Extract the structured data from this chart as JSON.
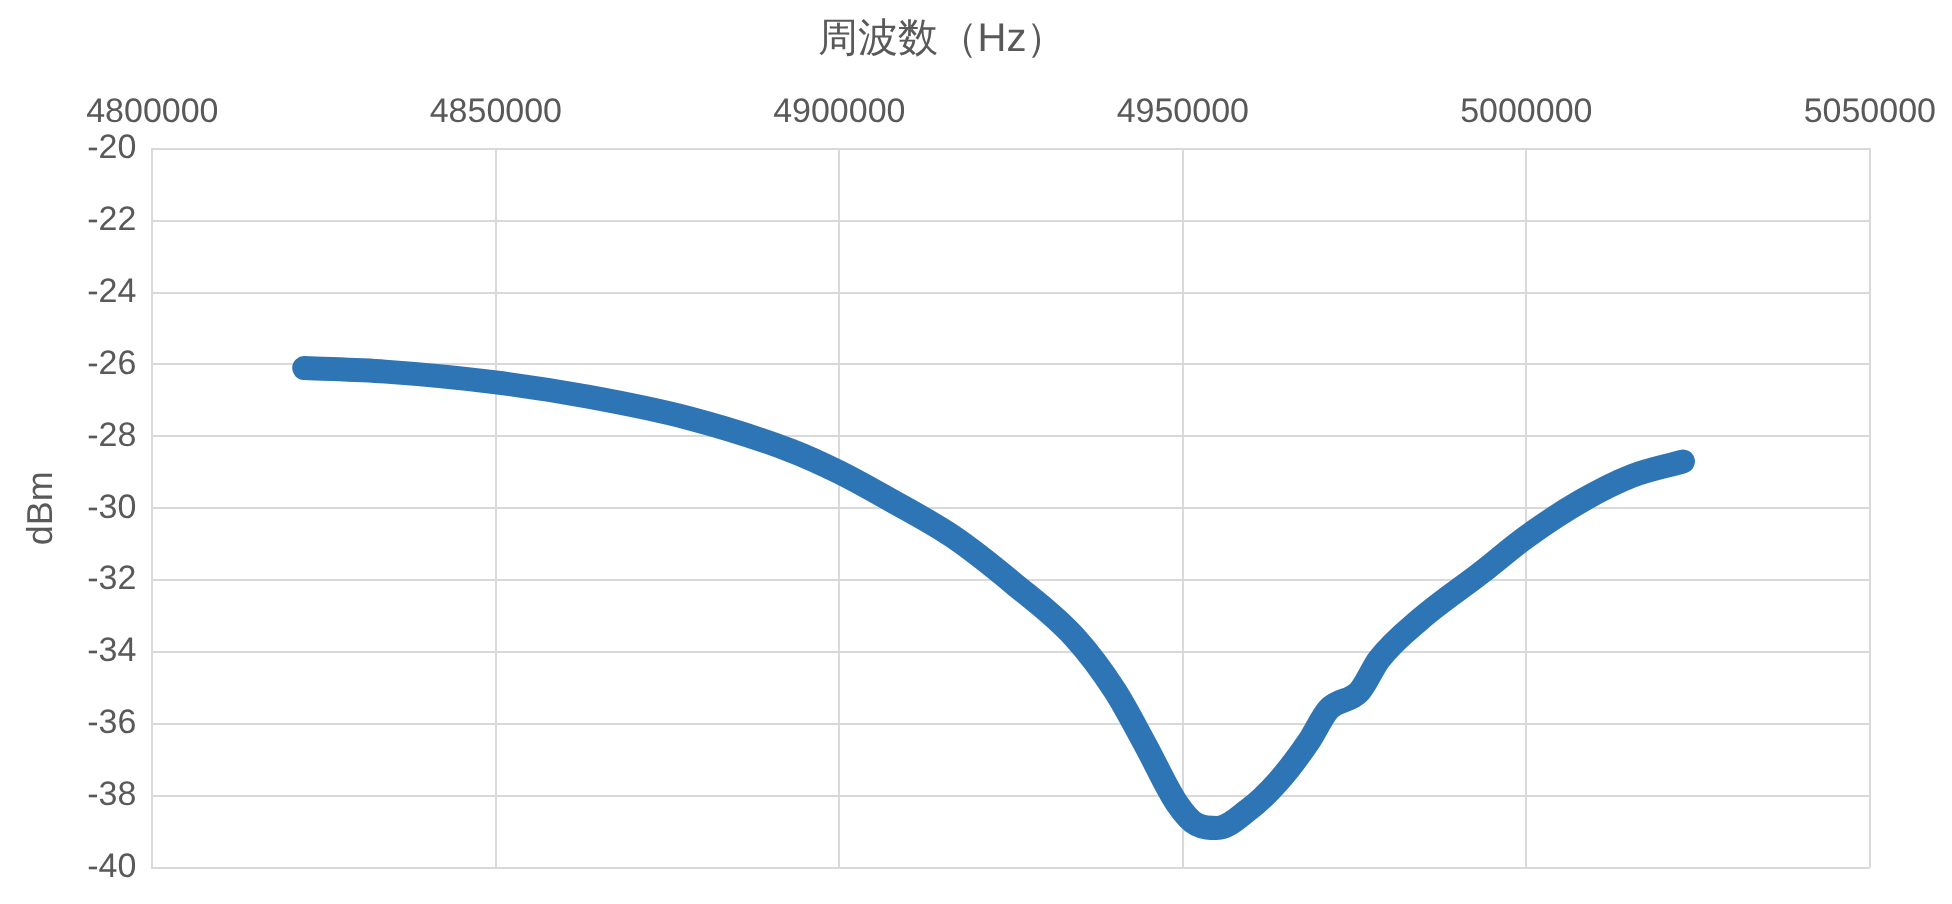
{
  "chart_data": {
    "type": "line",
    "title": "周波数（Hz）",
    "ylabel": "dBm",
    "x": [
      4822100,
      4833900,
      4850000,
      4863500,
      4878200,
      4893000,
      4900000,
      4907700,
      4916600,
      4925400,
      4934300,
      4940200,
      4944600,
      4949100,
      4952000,
      4955000,
      4959500,
      4963900,
      4968300,
      4971200,
      4975700,
      4978600,
      4984500,
      4993400,
      5000000,
      5008000,
      5015400,
      5022800
    ],
    "series": [
      {
        "color": "#2e75b6",
        "values": [
          -26.1,
          -26.2,
          -26.5,
          -26.9,
          -27.5,
          -28.4,
          -29.0,
          -29.8,
          -30.8,
          -32.1,
          -33.6,
          -35.1,
          -36.6,
          -38.2,
          -38.8,
          -38.9,
          -38.4,
          -37.6,
          -36.5,
          -35.6,
          -35.1,
          -34.2,
          -33.1,
          -31.8,
          -30.8,
          -29.8,
          -29.1,
          -28.7
        ]
      }
    ],
    "xlim": [
      4800000,
      5050000
    ],
    "xticks": [
      4800000,
      4850000,
      4900000,
      4950000,
      5000000,
      5050000
    ],
    "ylim": [
      -40,
      -20
    ],
    "yticks": [
      -40,
      -38,
      -36,
      -34,
      -32,
      -30,
      -28,
      -26,
      -24,
      -22,
      -20
    ],
    "grid": true,
    "legend": false,
    "line_style": "solid",
    "marker": "none"
  }
}
